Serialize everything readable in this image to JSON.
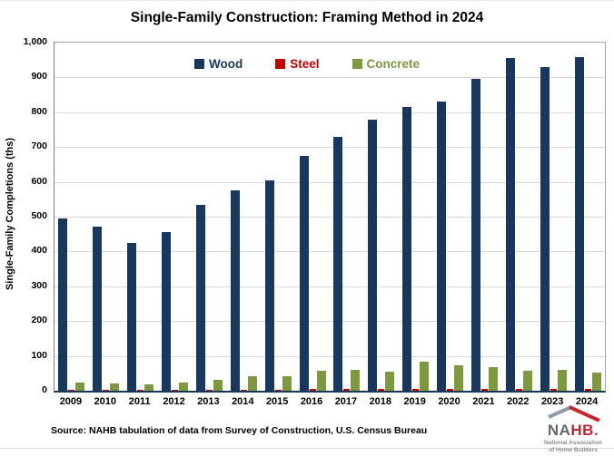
{
  "title": "Single-Family Construction: Framing Method in 2024",
  "source": "Source: NAHB tabulation of data from Survey of Construction, U.S. Census Bureau",
  "logo": {
    "name_gray": "NA",
    "name_red": "HB",
    "name_dot": ".",
    "subtitle_line1": "National Association",
    "subtitle_line2": "of Home Builders",
    "roof_left_color": "#8e9aa4",
    "roof_right_color": "#c3262c"
  },
  "chart_data": {
    "type": "bar",
    "title": "Single-Family Construction: Framing Method in 2024",
    "xlabel": "",
    "ylabel": "Single-Family Completions (ths)",
    "ylim": [
      0,
      1000
    ],
    "ytick_labels": [
      "0",
      "100",
      "200",
      "300",
      "400",
      "500",
      "600",
      "700",
      "800",
      "900",
      "1,000"
    ],
    "grid": true,
    "legend_position": "top-center-inside",
    "categories": [
      "2009",
      "2010",
      "2011",
      "2012",
      "2013",
      "2014",
      "2015",
      "2016",
      "2017",
      "2018",
      "2019",
      "2020",
      "2021",
      "2022",
      "2023",
      "2024"
    ],
    "series": [
      {
        "name": "Wood",
        "color": "#17375d",
        "values": [
          495,
          471,
          425,
          456,
          535,
          575,
          603,
          674,
          730,
          778,
          814,
          830,
          895,
          956,
          930,
          959
        ]
      },
      {
        "name": "Steel",
        "color": "#c00000",
        "values": [
          3,
          3,
          2,
          3,
          3,
          3,
          3,
          4,
          4,
          4,
          4,
          6,
          5,
          4,
          4,
          6
        ]
      },
      {
        "name": "Concrete",
        "color": "#7c9a3d",
        "values": [
          24,
          20,
          17,
          24,
          30,
          42,
          41,
          58,
          60,
          56,
          83,
          74,
          68,
          57,
          59,
          51
        ]
      }
    ]
  }
}
